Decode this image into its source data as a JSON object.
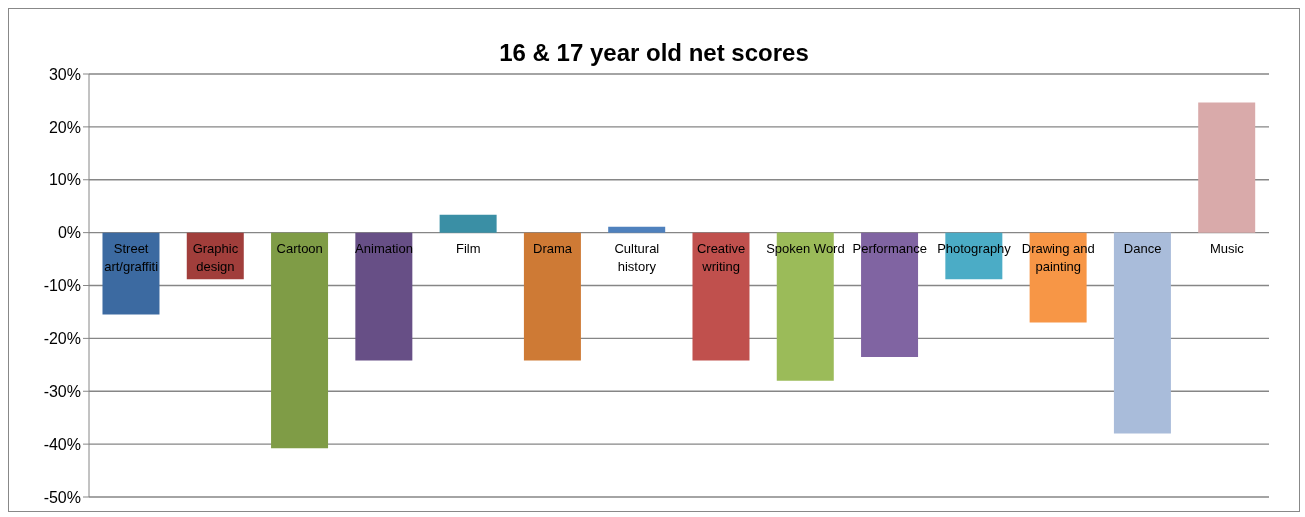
{
  "chart_data": {
    "type": "bar",
    "title": "16 & 17 year old net scores",
    "categories": [
      "Street art/graffiti",
      "Graphic design",
      "Cartoon",
      "Animation",
      "Film",
      "Drama",
      "Cultural history",
      "Creative writing",
      "Spoken Word",
      "Performance",
      "Photography",
      "Drawing and painting",
      "Dance",
      "Music"
    ],
    "values": [
      -15.5,
      -8.8,
      -40.8,
      -24.2,
      3.4,
      -24.2,
      1.1,
      -24.2,
      -28,
      -23.5,
      -8.8,
      -17,
      -38,
      24.6
    ],
    "colors": [
      "#3c6aa1",
      "#a13e3b",
      "#7f9c46",
      "#674f86",
      "#3a8fa5",
      "#ce7a35",
      "#4f81bd",
      "#c0504d",
      "#9bbb59",
      "#8064a2",
      "#4bacc6",
      "#f79646",
      "#a9bcda",
      "#d9aaaa"
    ],
    "ylim": [
      -50,
      30
    ],
    "yticks": [
      {
        "value": -50,
        "label": "-50%"
      },
      {
        "value": -40,
        "label": "-40%"
      },
      {
        "value": -30,
        "label": "-30%"
      },
      {
        "value": -20,
        "label": "-20%"
      },
      {
        "value": -10,
        "label": "-10%"
      },
      {
        "value": 0,
        "label": "0%"
      },
      {
        "value": 10,
        "label": "10%"
      },
      {
        "value": 20,
        "label": "20%"
      },
      {
        "value": 30,
        "label": "30%"
      }
    ],
    "grid": "y",
    "legend": false
  }
}
